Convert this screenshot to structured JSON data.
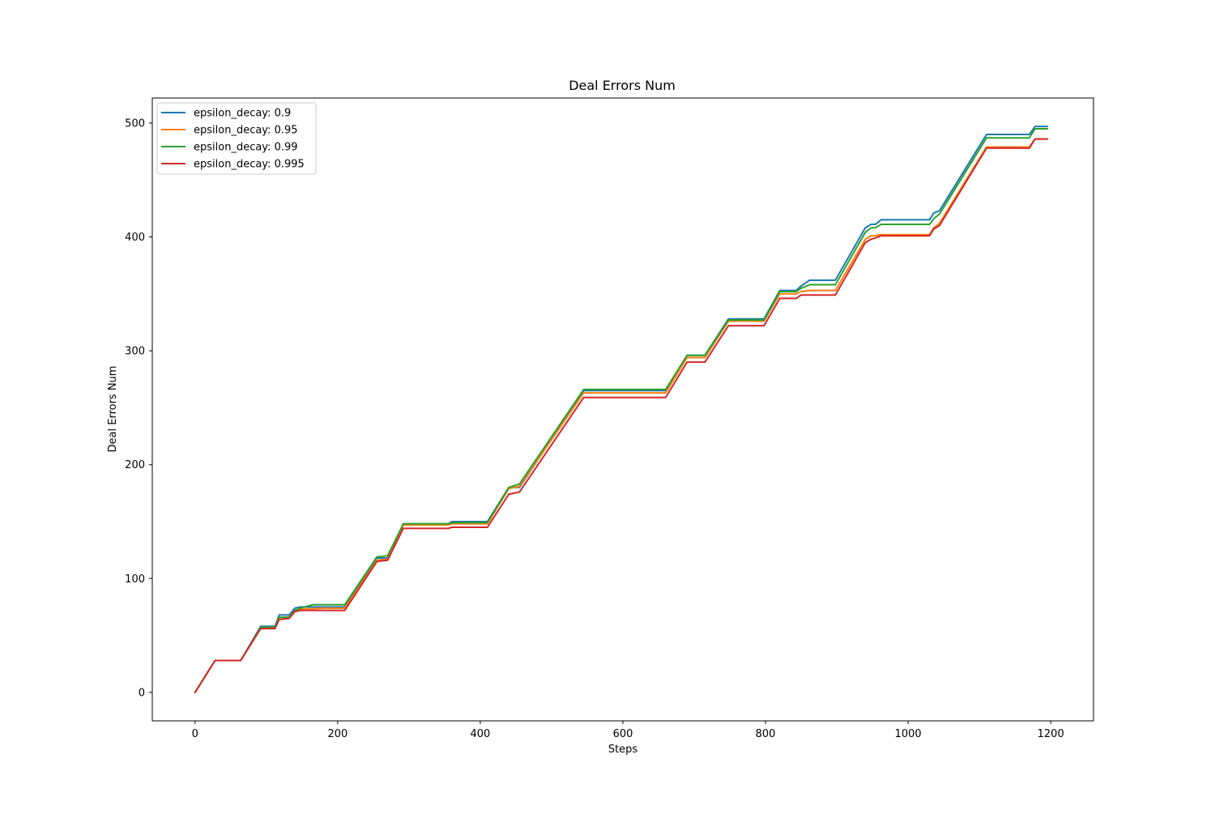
{
  "chart_data": {
    "type": "line",
    "title": "Deal Errors Num",
    "xlabel": "Steps",
    "ylabel": "Deal Errors Num",
    "xlim": [
      -60,
      1260
    ],
    "ylim": [
      -25,
      522
    ],
    "xticks": [
      0,
      200,
      400,
      600,
      800,
      1000,
      1200
    ],
    "yticks": [
      0,
      100,
      200,
      300,
      400,
      500
    ],
    "grid": false,
    "legend": "top-left",
    "series": [
      {
        "name": "epsilon_decay: 0.9",
        "color": "#1f77b4",
        "points": [
          [
            0,
            0
          ],
          [
            28,
            28
          ],
          [
            64,
            28
          ],
          [
            92,
            58
          ],
          [
            112,
            58
          ],
          [
            118,
            68
          ],
          [
            132,
            68
          ],
          [
            140,
            74
          ],
          [
            148,
            75
          ],
          [
            180,
            75
          ],
          [
            210,
            75
          ],
          [
            255,
            118
          ],
          [
            270,
            118
          ],
          [
            292,
            148
          ],
          [
            355,
            148
          ],
          [
            360,
            150
          ],
          [
            410,
            150
          ],
          [
            440,
            180
          ],
          [
            455,
            180
          ],
          [
            545,
            265
          ],
          [
            660,
            265
          ],
          [
            690,
            296
          ],
          [
            715,
            296
          ],
          [
            748,
            328
          ],
          [
            798,
            328
          ],
          [
            820,
            353
          ],
          [
            843,
            353
          ],
          [
            850,
            357
          ],
          [
            862,
            362
          ],
          [
            898,
            362
          ],
          [
            940,
            408
          ],
          [
            948,
            411
          ],
          [
            954,
            411
          ],
          [
            962,
            415
          ],
          [
            1030,
            415
          ],
          [
            1036,
            421
          ],
          [
            1044,
            423
          ],
          [
            1110,
            490
          ],
          [
            1170,
            490
          ],
          [
            1178,
            497
          ],
          [
            1195,
            497
          ]
        ]
      },
      {
        "name": "epsilon_decay: 0.95",
        "color": "#ff7f0e",
        "points": [
          [
            0,
            0
          ],
          [
            28,
            28
          ],
          [
            64,
            28
          ],
          [
            92,
            57
          ],
          [
            112,
            57
          ],
          [
            118,
            66
          ],
          [
            132,
            66
          ],
          [
            140,
            72
          ],
          [
            148,
            73
          ],
          [
            180,
            74
          ],
          [
            210,
            74
          ],
          [
            255,
            116
          ],
          [
            270,
            117
          ],
          [
            292,
            147
          ],
          [
            355,
            147
          ],
          [
            360,
            148
          ],
          [
            410,
            148
          ],
          [
            440,
            179
          ],
          [
            455,
            181
          ],
          [
            545,
            263
          ],
          [
            660,
            263
          ],
          [
            690,
            294
          ],
          [
            715,
            294
          ],
          [
            748,
            326
          ],
          [
            798,
            326
          ],
          [
            820,
            350
          ],
          [
            843,
            350
          ],
          [
            850,
            352
          ],
          [
            862,
            353
          ],
          [
            898,
            353
          ],
          [
            940,
            398
          ],
          [
            948,
            401
          ],
          [
            954,
            401
          ],
          [
            962,
            402
          ],
          [
            1030,
            402
          ],
          [
            1036,
            408
          ],
          [
            1044,
            412
          ],
          [
            1110,
            479
          ],
          [
            1170,
            479
          ],
          [
            1178,
            486
          ],
          [
            1195,
            486
          ]
        ]
      },
      {
        "name": "epsilon_decay: 0.99",
        "color": "#2ca02c",
        "points": [
          [
            0,
            0
          ],
          [
            28,
            28
          ],
          [
            64,
            28
          ],
          [
            92,
            57
          ],
          [
            112,
            57
          ],
          [
            118,
            66
          ],
          [
            132,
            66
          ],
          [
            140,
            72
          ],
          [
            148,
            74
          ],
          [
            165,
            77
          ],
          [
            180,
            77
          ],
          [
            210,
            77
          ],
          [
            255,
            119
          ],
          [
            270,
            120
          ],
          [
            292,
            148
          ],
          [
            355,
            148
          ],
          [
            360,
            149
          ],
          [
            410,
            149
          ],
          [
            440,
            180
          ],
          [
            455,
            183
          ],
          [
            545,
            266
          ],
          [
            660,
            266
          ],
          [
            690,
            296
          ],
          [
            715,
            296
          ],
          [
            748,
            327
          ],
          [
            798,
            327
          ],
          [
            820,
            352
          ],
          [
            843,
            352
          ],
          [
            850,
            355
          ],
          [
            862,
            358
          ],
          [
            898,
            358
          ],
          [
            940,
            404
          ],
          [
            948,
            408
          ],
          [
            954,
            408
          ],
          [
            962,
            411
          ],
          [
            1030,
            411
          ],
          [
            1036,
            416
          ],
          [
            1044,
            420
          ],
          [
            1110,
            487
          ],
          [
            1170,
            487
          ],
          [
            1178,
            495
          ],
          [
            1195,
            495
          ]
        ]
      },
      {
        "name": "epsilon_decay: 0.995",
        "color": "#d62728",
        "points": [
          [
            0,
            0
          ],
          [
            28,
            28
          ],
          [
            64,
            28
          ],
          [
            92,
            56
          ],
          [
            112,
            56
          ],
          [
            118,
            64
          ],
          [
            132,
            65
          ],
          [
            140,
            71
          ],
          [
            148,
            72
          ],
          [
            180,
            72
          ],
          [
            210,
            72
          ],
          [
            255,
            115
          ],
          [
            270,
            116
          ],
          [
            292,
            144
          ],
          [
            355,
            144
          ],
          [
            360,
            145
          ],
          [
            410,
            145
          ],
          [
            440,
            174
          ],
          [
            455,
            176
          ],
          [
            545,
            259
          ],
          [
            660,
            259
          ],
          [
            690,
            290
          ],
          [
            715,
            290
          ],
          [
            748,
            322
          ],
          [
            798,
            322
          ],
          [
            820,
            346
          ],
          [
            843,
            346
          ],
          [
            850,
            349
          ],
          [
            862,
            349
          ],
          [
            898,
            349
          ],
          [
            940,
            395
          ],
          [
            948,
            398
          ],
          [
            954,
            399
          ],
          [
            962,
            401
          ],
          [
            1030,
            401
          ],
          [
            1036,
            407
          ],
          [
            1044,
            410
          ],
          [
            1110,
            478
          ],
          [
            1170,
            478
          ],
          [
            1178,
            486
          ],
          [
            1195,
            486
          ]
        ]
      }
    ]
  }
}
